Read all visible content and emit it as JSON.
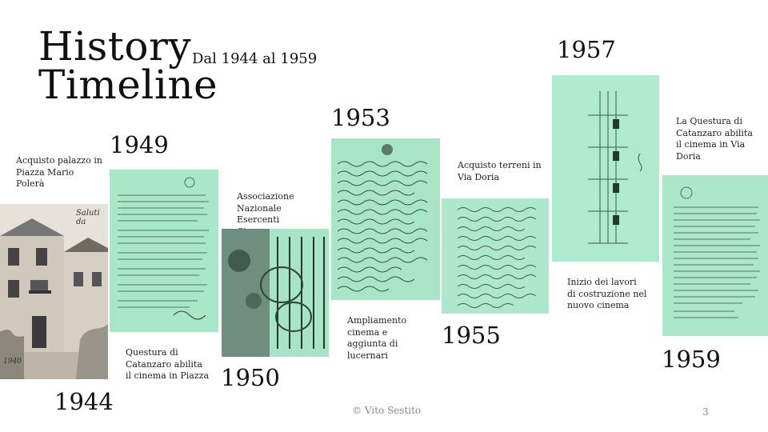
{
  "header": {
    "title": "History\nTimeline",
    "title_line1": "History",
    "title_line2": "Timeline",
    "subtitle": "Dal 1944 al 1959"
  },
  "timeline": [
    {
      "year": "1944",
      "caption": "Acquisto palazzo in Piazza Mario Polerà",
      "image_text": "Saluti da",
      "image_year": "1940"
    },
    {
      "year": "1949",
      "caption": "Questura di Catanzaro abilita il cinema in Piazza"
    },
    {
      "year": "1950",
      "caption": "Associazione Nazionale Esercenti Cinema"
    },
    {
      "year": "1953",
      "caption": "Ampliamento cinema e aggiunta di lucernari"
    },
    {
      "year": "1955",
      "caption": "Acquisto terreni in Via Doria"
    },
    {
      "year": "1957",
      "caption": "Inizio dei lavori di costruzione nel nuovo cinema"
    },
    {
      "year": "1959",
      "caption": "La Questura di Catanzaro abilita il cinema in Via Doria"
    }
  ],
  "footer": {
    "copyright": "© Vito Sestito",
    "page_number": "3"
  },
  "colors": {
    "document_tint": "#a8e6c8",
    "photo_sepia": "#d9d5cc",
    "text": "#111111",
    "footer_text": "#888888"
  }
}
